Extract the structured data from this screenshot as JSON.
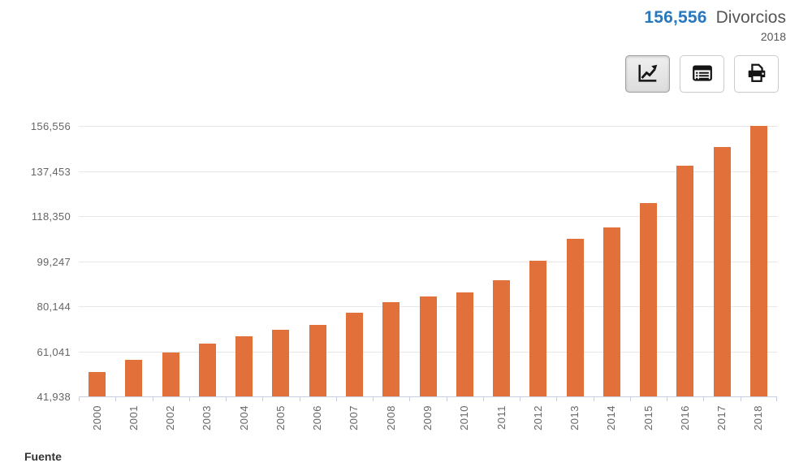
{
  "header": {
    "value": "156,556",
    "label": "Divorcios",
    "year": "2018"
  },
  "toolbar": {
    "buttons": [
      {
        "id": "chart-view",
        "icon": "line-chart-icon",
        "active": true
      },
      {
        "id": "table-view",
        "icon": "table-icon",
        "active": false
      },
      {
        "id": "print",
        "icon": "printer-icon",
        "active": false
      }
    ]
  },
  "chart_data": {
    "type": "bar",
    "categories": [
      "2000",
      "2001",
      "2002",
      "2003",
      "2004",
      "2005",
      "2006",
      "2007",
      "2008",
      "2009",
      "2010",
      "2011",
      "2012",
      "2013",
      "2014",
      "2015",
      "2016",
      "2017",
      "2018"
    ],
    "values": [
      52358,
      57370,
      60641,
      64248,
      67575,
      70184,
      72396,
      77255,
      81851,
      84302,
      86042,
      91285,
      99509,
      108727,
      113478,
      123883,
      139807,
      147581,
      156556
    ],
    "series_name": "Divorcios",
    "xlabel": "",
    "ylabel": "",
    "ylim": [
      41938,
      156556
    ],
    "yticks": [
      156556,
      137453,
      118350,
      99247,
      80144,
      61041,
      41938
    ],
    "grid": true,
    "legend": "none",
    "bar_color": "#e2703a"
  },
  "footer": {
    "source_label": "Fuente"
  },
  "colors": {
    "accent_blue": "#2878bd",
    "bar_orange": "#e2703a",
    "grid_gray": "#e6e6e6",
    "axis_lavender": "#c9cde0",
    "text_gray": "#666666",
    "header_gray": "#565656"
  }
}
